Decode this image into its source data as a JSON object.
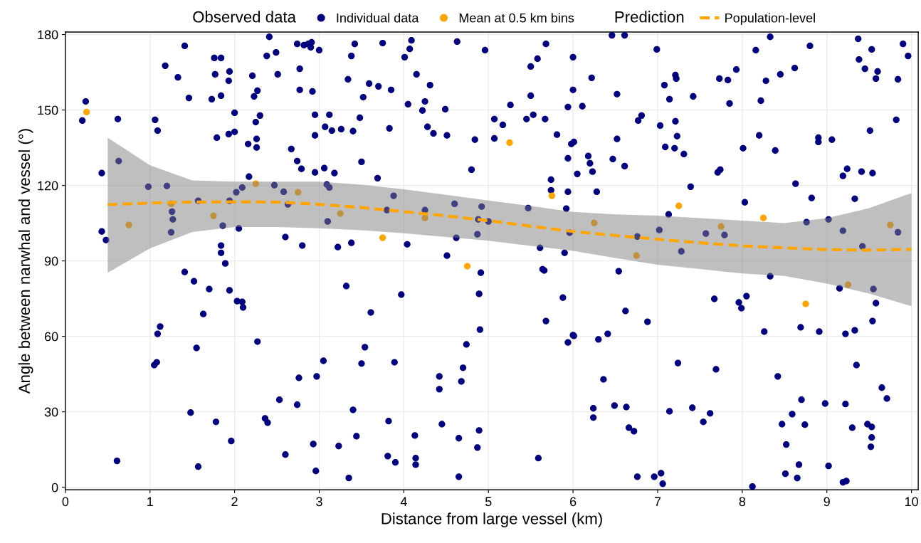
{
  "chart_data": {
    "type": "scatter",
    "xlabel": "Distance from large vessel (km)",
    "ylabel": "Angle between narwhal and vessel (°)",
    "legend_title": "Observed data",
    "annotations": [
      "Prediction"
    ],
    "legend": "top",
    "grid": true,
    "xlim": [
      0,
      10.08
    ],
    "ylim": [
      -1,
      181
    ],
    "xticks": [
      0,
      1,
      2,
      3,
      4,
      5,
      6,
      7,
      8,
      9,
      10
    ],
    "yticks": [
      0,
      30,
      60,
      90,
      120,
      150,
      180
    ],
    "series": [
      {
        "name": "Individual data",
        "marker": "circle",
        "color": "#000080",
        "x": [
          0.2,
          0.24,
          0.43,
          0.43,
          0.48,
          0.61,
          0.62,
          0.63,
          0.98,
          1.06,
          1.09,
          1.18,
          1.2,
          1.25,
          1.26,
          1.27,
          1.33,
          1.41,
          1.46,
          1.09,
          1.12,
          1.05,
          1.08,
          1.41,
          1.52,
          1.55,
          1.48,
          1.57,
          1.63,
          1.57,
          1.7,
          1.73,
          1.76,
          1.77,
          1.79,
          1.84,
          1.84,
          1.78,
          1.84,
          1.84,
          1.86,
          1.89,
          1.94,
          1.93,
          1.93,
          1.94,
          1.94,
          1.96,
          2.0,
          2.0,
          2.02,
          2.03,
          2.05,
          2.09,
          2.1,
          2.09,
          2.16,
          2.17,
          2.21,
          2.23,
          2.25,
          2.26,
          2.26,
          2.27,
          2.3,
          2.27,
          2.36,
          2.39,
          2.38,
          2.41,
          2.47,
          2.49,
          2.51,
          2.53,
          2.58,
          2.6,
          2.6,
          2.63,
          2.67,
          2.74,
          2.74,
          2.77,
          2.77,
          2.74,
          2.76,
          2.79,
          2.8,
          2.82,
          2.87,
          2.91,
          2.9,
          2.92,
          2.95,
          2.95,
          2.95,
          2.93,
          2.96,
          2.97,
          3.0,
          3.05,
          3.06,
          3.07,
          3.1,
          3.09,
          3.12,
          3.12,
          3.15,
          3.18,
          3.22,
          3.23,
          3.26,
          3.32,
          3.34,
          3.35,
          3.38,
          3.4,
          3.38,
          3.4,
          3.42,
          3.44,
          3.48,
          3.5,
          3.52,
          3.5,
          3.54,
          3.61,
          3.59,
          3.7,
          3.69,
          3.75,
          3.8,
          3.81,
          3.83,
          3.82,
          3.85,
          3.88,
          3.89,
          3.9,
          3.97,
          4.01,
          4.05,
          4.04,
          4.07,
          4.09,
          4.13,
          4.14,
          4.14,
          4.15,
          4.22,
          4.25,
          4.28,
          4.31,
          4.35,
          4.25,
          4.42,
          4.42,
          4.45,
          4.49,
          4.51,
          4.51,
          4.6,
          4.63,
          4.62,
          4.65,
          4.65,
          4.68,
          4.7,
          4.74,
          4.8,
          4.84,
          4.87,
          4.87,
          4.88,
          4.89,
          4.89,
          4.9,
          4.91,
          4.92,
          4.96,
          5.0,
          5.07,
          5.07,
          5.17,
          5.26,
          5.45,
          5.47,
          5.5,
          5.5,
          5.53,
          5.58,
          5.59,
          5.61,
          5.64,
          5.66,
          5.68,
          5.67,
          5.68,
          5.74,
          5.74,
          5.81,
          5.88,
          5.9,
          5.92,
          5.94,
          5.94,
          5.94,
          5.94,
          5.96,
          5.98,
          6.0,
          6.0,
          6.01,
          6.0,
          6.01,
          6.05,
          6.11,
          6.18,
          6.2,
          6.22,
          6.23,
          6.24,
          6.24,
          6.28,
          6.3,
          6.36,
          6.41,
          6.46,
          6.47,
          6.49,
          6.52,
          6.52,
          6.54,
          6.61,
          6.61,
          6.62,
          6.63,
          6.66,
          6.72,
          6.76,
          6.76,
          6.77,
          6.81,
          6.88,
          6.96,
          6.99,
          7.02,
          7.03,
          7.04,
          7.06,
          7.08,
          7.09,
          7.13,
          7.14,
          7.14,
          7.2,
          7.21,
          7.22,
          7.21,
          7.23,
          7.24,
          7.28,
          7.31,
          7.39,
          7.41,
          7.42,
          7.54,
          7.57,
          7.62,
          7.67,
          7.69,
          7.71,
          7.74,
          7.73,
          7.79,
          7.83,
          7.85,
          7.93,
          7.96,
          7.99,
          8.01,
          8.03,
          8.05,
          8.12,
          8.16,
          8.2,
          8.22,
          8.26,
          8.28,
          8.33,
          8.33,
          8.39,
          8.42,
          8.45,
          8.47,
          8.52,
          8.51,
          8.59,
          8.62,
          8.63,
          8.65,
          8.67,
          8.69,
          8.7,
          8.74,
          8.76,
          8.8,
          8.82,
          8.91,
          8.9,
          8.9,
          8.98,
          9.02,
          9.02,
          9.06,
          9.15,
          9.19,
          9.19,
          9.19,
          9.23,
          9.22,
          9.22,
          9.24,
          9.3,
          9.33,
          9.33,
          9.35,
          9.37,
          9.38,
          9.41,
          9.42,
          9.45,
          9.48,
          9.53,
          9.51,
          9.53,
          9.54,
          9.55,
          9.52,
          9.53,
          9.54,
          9.58,
          9.6,
          9.58,
          9.65,
          9.71,
          9.82,
          9.84,
          9.84,
          9.9,
          9.96
        ],
        "values": [
          145.8,
          153.4,
          101.7,
          124.9,
          98.3,
          10.5,
          146.4,
          129.7,
          119.5,
          146.1,
          141.8,
          167.6,
          119.8,
          101.4,
          109.6,
          106.5,
          163.0,
          175.5,
          154.8,
          61.0,
          63.9,
          48.6,
          49.7,
          85.6,
          81.9,
          55.4,
          29.7,
          8.2,
          68.9,
          113.9,
          78.8,
          154.3,
          170.7,
          164.2,
          139.0,
          170.7,
          155.7,
          26.0,
          96.1,
          93.2,
          104.0,
          89.0,
          165.3,
          161.6,
          140.4,
          113.9,
          78.3,
          18.4,
          148.9,
          141.3,
          117.3,
          74.0,
          102.9,
          73.7,
          71.5,
          119.2,
          136.5,
          123.5,
          163.6,
          155.4,
          145.2,
          138.5,
          135.1,
          157.7,
          147.8,
          57.9,
          27.4,
          25.7,
          171.5,
          179.1,
          120.1,
          172.9,
          164.2,
          34.8,
          117.5,
          99.5,
          13.0,
          112.5,
          134.5,
          176.3,
          129.7,
          166.4,
          158.0,
          32.8,
          43.5,
          126.6,
          96.1,
          175.8,
          176.3,
          176.9,
          174.9,
          157.4,
          125.2,
          148.1,
          139.9,
          17.2,
          6.5,
          44.1,
          173.8,
          50.3,
          126.9,
          143.3,
          105.7,
          120.4,
          119.2,
          148.1,
          141.8,
          124.9,
          95.5,
          16.4,
          142.4,
          80.0,
          162.2,
          3.7,
          171.5,
          141.6,
          97.2,
          30.8,
          176.3,
          20.3,
          146.9,
          129.4,
          155.1,
          49.2,
          55.7,
          69.5,
          160.5,
          159.4,
          122.9,
          176.6,
          110.2,
          12.4,
          142.7,
          26.3,
          158.0,
          115.9,
          49.7,
          9.9,
          76.6,
          171.0,
          152.3,
          96.6,
          174.3,
          177.7,
          20.6,
          11.6,
          9.0,
          164.2,
          149.8,
          153.4,
          143.3,
          159.9,
          140.7,
          110.2,
          44.1,
          39.0,
          25.1,
          150.3,
          139.9,
          92.1,
          112.7,
          177.2,
          99.2,
          19.5,
          4.2,
          42.1,
          47.5,
          56.8,
          126.3,
          138.2,
          15.8,
          100.6,
          106.5,
          76.9,
          22.6,
          62.7,
          85.3,
          111.6,
          173.8,
          105.7,
          146.4,
          138.7,
          144.1,
          152.0,
          146.4,
          111.0,
          167.3,
          155.7,
          148.1,
          170.4,
          11.6,
          95.2,
          86.7,
          86.2,
          176.3,
          146.4,
          66.1,
          122.3,
          118.1,
          140.2,
          75.4,
          93.2,
          110.8,
          151.2,
          117.5,
          130.8,
          57.6,
          101.2,
          136.5,
          171.0,
          158.0,
          137.3,
          60.5,
          60.2,
          124.6,
          151.5,
          131.7,
          128.8,
          162.8,
          125.5,
          31.4,
          27.7,
          117.5,
          58.8,
          42.9,
          61.0,
          179.7,
          130.5,
          32.5,
          156.3,
          138.5,
          85.9,
          179.7,
          127.7,
          70.1,
          31.9,
          23.7,
          22.3,
          99.7,
          4.2,
          145.8,
          147.8,
          65.8,
          4.2,
          174.1,
          102.3,
          143.8,
          5.6,
          1.4,
          159.9,
          135.3,
          108.5,
          30.2,
          154.3,
          134.8,
          163.9,
          162.5,
          145.5,
          139.6,
          49.4,
          93.8,
          132.5,
          119.5,
          31.6,
          155.4,
          26.0,
          100.9,
          29.4,
          74.9,
          46.9,
          125.2,
          126.3,
          162.5,
          100.3,
          161.9,
          152.6,
          166.1,
          73.5,
          71.2,
          134.8,
          113.3,
          76.0,
          0.3,
          173.8,
          139.9,
          153.7,
          61.9,
          161.6,
          83.9,
          179.1,
          133.9,
          44.1,
          164.2,
          25.1,
          17.0,
          5.4,
          29.1,
          166.7,
          120.7,
          3.7,
          9.0,
          63.6,
          34.8,
          24.9,
          105.4,
          175.5,
          115.0,
          61.9,
          139.0,
          137.3,
          33.3,
          8.5,
          106.5,
          138.2,
          79.1,
          102.0,
          123.8,
          2.0,
          2.5,
          61.0,
          33.1,
          126.6,
          23.7,
          114.7,
          62.4,
          48.6,
          178.3,
          170.1,
          125.5,
          95.8,
          166.4,
          25.1,
          24.0,
          141.8,
          174.1,
          124.9,
          78.8,
          16.1,
          19.8,
          66.1,
          73.2,
          165.3,
          162.5,
          39.6,
          35.3,
          146.1,
          162.2,
          101.4,
          176.3,
          171.5
        ]
      },
      {
        "name": "Mean at 0.5 km bins",
        "marker": "circle",
        "color": "#ffa500",
        "x": [
          0.25,
          0.75,
          1.25,
          1.75,
          2.25,
          2.75,
          3.25,
          3.75,
          4.25,
          4.75,
          5.25,
          5.75,
          6.25,
          6.75,
          7.25,
          7.75,
          8.25,
          8.75,
          9.25,
          9.75
        ],
        "values": [
          149.2,
          104.3,
          112.7,
          107.9,
          120.7,
          117.3,
          108.8,
          99.2,
          107.1,
          87.9,
          137.0,
          115.9,
          105.1,
          92.1,
          111.9,
          103.7,
          107.1,
          72.9,
          80.5,
          104.3
        ]
      },
      {
        "name": "Population-level",
        "type": "line",
        "marker": "none",
        "color": "#ffa500",
        "line_style": "dashed",
        "x": [
          0.5,
          1,
          1.5,
          2,
          2.5,
          3,
          3.5,
          4,
          4.5,
          5,
          5.5,
          6,
          6.5,
          7,
          7.5,
          8,
          8.5,
          9,
          9.5,
          10
        ],
        "values": [
          112.4,
          113.0,
          113.4,
          113.5,
          113.4,
          112.5,
          111.2,
          109.6,
          107.9,
          106.0,
          103.8,
          101.7,
          100.1,
          98.6,
          97.2,
          96.0,
          95.2,
          94.5,
          94.3,
          94.6
        ],
        "lower": [
          85.3,
          95.0,
          101.5,
          103.5,
          103.5,
          103.0,
          102.2,
          101.0,
          99.5,
          98.0,
          96.0,
          94.0,
          91.2,
          88.5,
          86.8,
          85.0,
          84.0,
          81.0,
          77.0,
          72.0
        ],
        "upper": [
          139.0,
          128.0,
          122.0,
          121.5,
          121.5,
          121.5,
          120.3,
          118.5,
          116.3,
          114.0,
          111.8,
          109.5,
          108.5,
          108.0,
          107.0,
          106.0,
          105.0,
          107.0,
          111.0,
          117.0
        ]
      }
    ]
  }
}
